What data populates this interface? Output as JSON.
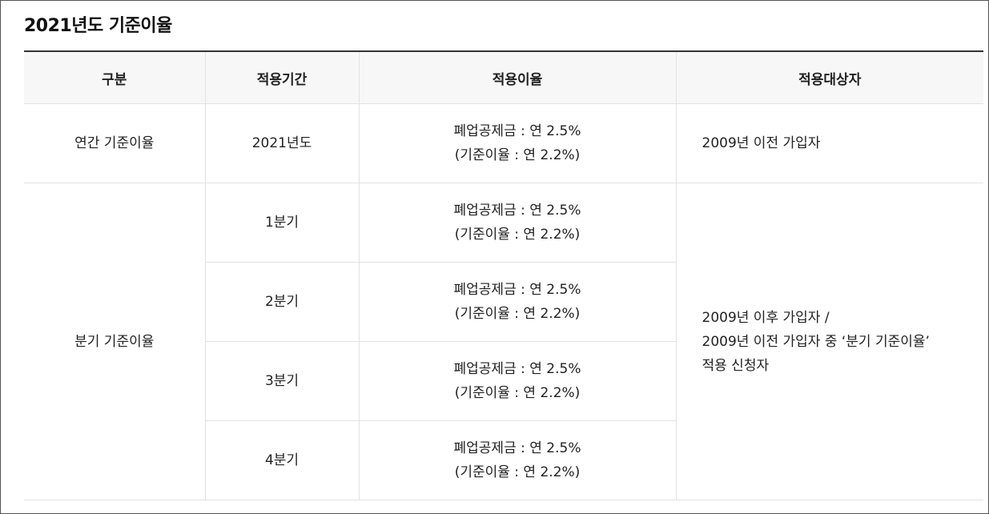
{
  "title": "2021년도 기준이율",
  "table": {
    "headers": [
      "구분",
      "적용기간",
      "적용이율",
      "적용대상자"
    ],
    "annual": {
      "category": "연간 기준이율",
      "period": "2021년도",
      "rate_line1": "폐업공제금 : 연 2.5%",
      "rate_line2": "(기준이율 : 연 2.2%)",
      "target": "2009년 이전 가입자"
    },
    "quarterly": {
      "category": "분기 기준이율",
      "rows": [
        {
          "period": "1분기",
          "rate_line1": "폐업공제금 : 연 2.5%",
          "rate_line2": "(기준이율 : 연 2.2%)"
        },
        {
          "period": "2분기",
          "rate_line1": "폐업공제금 : 연 2.5%",
          "rate_line2": "(기준이율 : 연 2.2%)"
        },
        {
          "period": "3분기",
          "rate_line1": "폐업공제금 : 연 2.5%",
          "rate_line2": "(기준이율 : 연 2.2%)"
        },
        {
          "period": "4분기",
          "rate_line1": "폐업공제금 : 연 2.5%",
          "rate_line2": "(기준이율 : 연 2.2%)"
        }
      ],
      "target_line1": "2009년 이후 가입자 /",
      "target_line2": "2009년 이전 가입자 중 ‘분기 기준이율’",
      "target_line3": "적용 신청자"
    }
  }
}
